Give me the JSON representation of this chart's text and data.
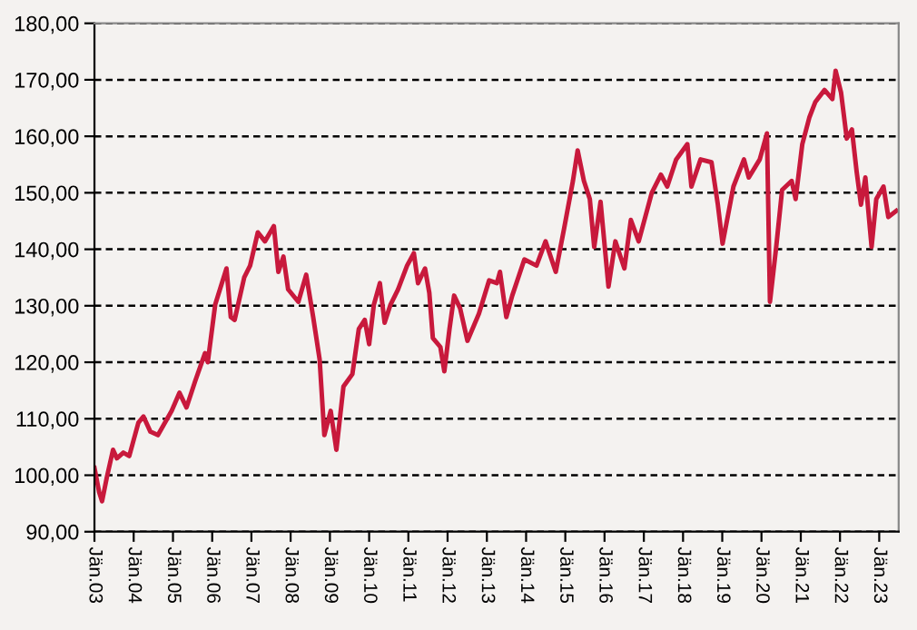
{
  "chart_data": {
    "type": "line",
    "x": [
      "2003-01-01",
      "2003-02-14",
      "2003-03-13",
      "2003-04-26",
      "2003-06-23",
      "2003-07-29",
      "2003-09-27",
      "2003-11-21",
      "2004-02-14",
      "2004-04-01",
      "2004-06-05",
      "2004-08-14",
      "2004-12-20",
      "2005-03-02",
      "2005-05-07",
      "2005-07-29",
      "2005-10-26",
      "2005-11-21",
      "2006-01-29",
      "2006-04-01",
      "2006-05-14",
      "2006-06-23",
      "2006-07-29",
      "2006-10-26",
      "2006-12-20",
      "2007-03-02",
      "2007-05-07",
      "2007-07-29",
      "2007-09-09",
      "2007-10-26",
      "2007-12-09",
      "2008-03-13",
      "2008-05-25",
      "2008-07-29",
      "2008-09-27",
      "2008-11-10",
      "2009-01-08",
      "2009-03-02",
      "2009-05-07",
      "2009-07-29",
      "2009-09-27",
      "2009-11-21",
      "2010-01-01",
      "2010-02-14",
      "2010-04-11",
      "2010-05-25",
      "2010-07-19",
      "2010-09-27",
      "2010-12-20",
      "2011-02-21",
      "2011-04-01",
      "2011-06-05",
      "2011-07-15",
      "2011-08-17",
      "2011-10-26",
      "2011-12-02",
      "2012-01-19",
      "2012-03-02",
      "2012-04-26",
      "2012-07-04",
      "2012-10-19",
      "2013-01-22",
      "2013-04-04",
      "2013-05-03",
      "2013-07-01",
      "2013-08-25",
      "2013-12-16",
      "2014-04-08",
      "2014-07-01",
      "2014-10-04",
      "2014-12-20",
      "2015-03-13",
      "2015-04-26",
      "2015-06-23",
      "2015-08-17",
      "2015-09-27",
      "2015-11-25",
      "2016-02-07",
      "2016-04-11",
      "2016-07-04",
      "2016-09-02",
      "2016-11-14",
      "2017-03-16",
      "2017-06-09",
      "2017-08-07",
      "2017-10-29",
      "2018-02-10",
      "2018-03-20",
      "2018-06-13",
      "2018-09-23",
      "2018-11-21",
      "2019-01-04",
      "2019-04-15",
      "2019-07-22",
      "2019-09-05",
      "2019-12-16",
      "2020-02-21",
      "2020-03-20",
      "2020-05-17",
      "2020-07-11",
      "2020-10-08",
      "2020-11-14",
      "2021-01-15",
      "2021-03-23",
      "2021-05-17",
      "2021-08-10",
      "2021-10-22",
      "2021-11-21",
      "2022-01-11",
      "2022-03-05",
      "2022-04-22",
      "2022-06-05",
      "2022-07-15",
      "2022-08-25",
      "2022-10-22",
      "2022-12-05",
      "2023-02-10",
      "2023-03-27",
      "2023-06-09"
    ],
    "series": [
      {
        "color": "#c8193c",
        "values": [
          101.3,
          97,
          95.4,
          99.6,
          104.5,
          103,
          104,
          103.4,
          109.3,
          110.4,
          107.7,
          107.1,
          111.4,
          114.6,
          112,
          116.8,
          121.6,
          120,
          130.2,
          134,
          136.6,
          128,
          127.5,
          135,
          137.1,
          143,
          141.4,
          144.1,
          136,
          138.7,
          132.9,
          130.7,
          135.5,
          128,
          120.5,
          107.1,
          111.4,
          104.5,
          115.7,
          117.9,
          125.9,
          127.5,
          123.2,
          130.2,
          134,
          127,
          130.2,
          132.9,
          137.1,
          139.3,
          134,
          136.6,
          132.3,
          124.3,
          122.7,
          118.4,
          125.9,
          131.8,
          129.6,
          123.8,
          128.6,
          134.5,
          134,
          136,
          128,
          131.8,
          138.2,
          137.1,
          141.4,
          136,
          143.6,
          152.1,
          157.5,
          152.1,
          148.9,
          140.4,
          148.4,
          133.4,
          141.4,
          136.6,
          145.2,
          141.4,
          150,
          153.2,
          151.1,
          155.9,
          158.6,
          151.1,
          155.9,
          155.4,
          147.9,
          141,
          151.1,
          155.9,
          152.7,
          155.9,
          160.5,
          130.7,
          140.4,
          150.5,
          152.1,
          148.9,
          158.6,
          163.4,
          166.1,
          168.2,
          166.6,
          171.6,
          167.7,
          159.6,
          161.2,
          153.7,
          147.9,
          152.7,
          140.4,
          148.9,
          151.1,
          145.7,
          146.8
        ]
      }
    ],
    "xlim": [
      "2003-01-01",
      "2023-07-01"
    ],
    "xticks": [
      {
        "value": "2003-01-01",
        "label": "Jän.03"
      },
      {
        "value": "2004-01-01",
        "label": "Jän.04"
      },
      {
        "value": "2005-01-01",
        "label": "Jän.05"
      },
      {
        "value": "2006-01-01",
        "label": "Jän.06"
      },
      {
        "value": "2007-01-01",
        "label": "Jän.07"
      },
      {
        "value": "2008-01-01",
        "label": "Jän.08"
      },
      {
        "value": "2009-01-01",
        "label": "Jän.09"
      },
      {
        "value": "2010-01-01",
        "label": "Jän.10"
      },
      {
        "value": "2011-01-01",
        "label": "Jän.11"
      },
      {
        "value": "2012-01-01",
        "label": "Jän.12"
      },
      {
        "value": "2013-01-01",
        "label": "Jän.13"
      },
      {
        "value": "2014-01-01",
        "label": "Jän.14"
      },
      {
        "value": "2015-01-01",
        "label": "Jän.15"
      },
      {
        "value": "2016-01-01",
        "label": "Jän.16"
      },
      {
        "value": "2017-01-01",
        "label": "Jän.17"
      },
      {
        "value": "2018-01-01",
        "label": "Jän.18"
      },
      {
        "value": "2019-01-01",
        "label": "Jän.19"
      },
      {
        "value": "2020-01-01",
        "label": "Jän.20"
      },
      {
        "value": "2021-01-01",
        "label": "Jän.21"
      },
      {
        "value": "2022-01-01",
        "label": "Jän.22"
      },
      {
        "value": "2023-01-01",
        "label": "Jän.23"
      }
    ],
    "ylim": [
      90,
      180
    ],
    "yticks": [
      {
        "value": 90,
        "label": "90,00"
      },
      {
        "value": 100,
        "label": "100,00"
      },
      {
        "value": 110,
        "label": "110,00"
      },
      {
        "value": 120,
        "label": "120,00"
      },
      {
        "value": 130,
        "label": "130,00"
      },
      {
        "value": 140,
        "label": "140,00"
      },
      {
        "value": 150,
        "label": "150,00"
      },
      {
        "value": 160,
        "label": "160,00"
      },
      {
        "value": 170,
        "label": "170,00"
      },
      {
        "value": 180,
        "label": "180,00"
      }
    ],
    "grid": "y",
    "marker": "none",
    "line_style": "solid"
  }
}
